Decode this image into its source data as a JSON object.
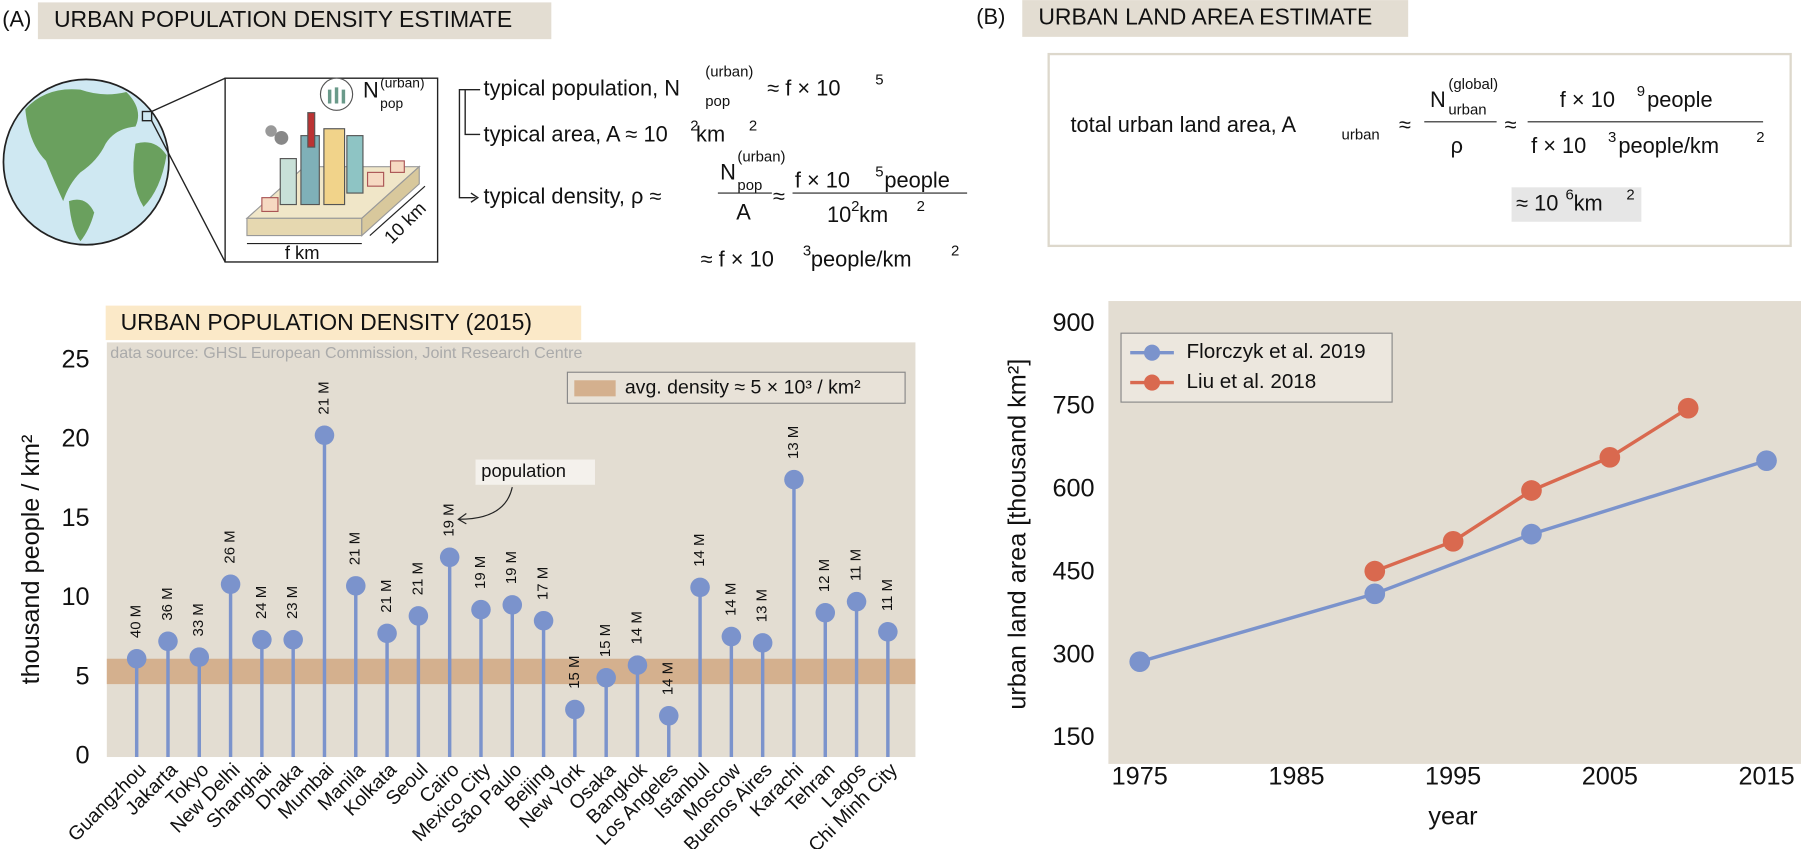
{
  "panel_a": {
    "label": "(A)",
    "title": "URBAN POPULATION DENSITY ESTIMATE",
    "diagram": {
      "n": "N",
      "n_sup": "(urban)",
      "n_sub": "pop",
      "width": "f  km",
      "depth": "10 km"
    },
    "population": [
      "typical population, N",
      "(urban)",
      "pop",
      "≈ f × 10",
      "5"
    ],
    "area": [
      "typical area, A ≈ 10",
      "2",
      " km",
      "2"
    ],
    "density": [
      "typical density, ρ ≈",
      "N",
      "(urban)",
      "pop",
      "A",
      "≈",
      "f × 10",
      "5",
      " people",
      "10",
      "2",
      " km",
      "2"
    ],
    "result": [
      "≈ f × 10",
      "3",
      " people/km",
      "2"
    ]
  },
  "panel_b": {
    "label": "(B)",
    "title": "URBAN LAND AREA ESTIMATE",
    "formula": [
      "total urban land area, A",
      "urban",
      "≈",
      "N",
      "(global)",
      "urban",
      "ρ",
      "≈",
      "f × 10",
      "9",
      " people",
      "f × 10",
      "3",
      " people/km",
      "2"
    ],
    "result": [
      "≈ 10",
      "6",
      " km",
      "2"
    ]
  },
  "chart_data": [
    {
      "type": "lollipop",
      "title": "URBAN POPULATION DENSITY (2015)",
      "subtitle": "data source: GHSL European Commission, Joint Research Centre",
      "ylabel": "thousand people / km²",
      "categories": [
        "Guangzhou",
        "Jakarta",
        "Tokyo",
        "New Delhi",
        "Shanghai",
        "Dhaka",
        "Mumbai",
        "Manila",
        "Kolkata",
        "Seoul",
        "Cairo",
        "Mexico City",
        "São Paulo",
        "Beijing",
        "New York",
        "Osaka",
        "Bangkok",
        "Los Angeles",
        "Istanbul",
        "Moscow",
        "Buenos Aires",
        "Karachi",
        "Tehran",
        "Lagos",
        "Ho Chi Minh City"
      ],
      "values": [
        6.2,
        7.3,
        6.3,
        10.9,
        7.4,
        7.4,
        20.3,
        10.8,
        7.8,
        8.9,
        12.6,
        9.3,
        9.6,
        8.6,
        3.0,
        5.0,
        5.8,
        2.6,
        10.7,
        7.6,
        7.2,
        17.5,
        9.1,
        9.8,
        7.9
      ],
      "color": "#7b93cc",
      "population": {
        "name": "population",
        "values": [
          40,
          36,
          33,
          26,
          24,
          23,
          21,
          21,
          21,
          21,
          19,
          19,
          19,
          17,
          15,
          15,
          14,
          14,
          14,
          14,
          13,
          13,
          12,
          11,
          11
        ],
        "value_labels": [
          "40 M",
          "36 M",
          "33 M",
          "26 M",
          "24 M",
          "23 M",
          "21 M",
          "21 M",
          "21 M",
          "21 M",
          "19 M",
          "19 M",
          "19 M",
          "17 M",
          "15 M",
          "15 M",
          "14 M",
          "14 M",
          "14 M",
          "14 M",
          "13 M",
          "13 M",
          "12 M",
          "11 M",
          "11 M"
        ]
      },
      "band": {
        "name": "avg. density ≈ 5 × 10³ / km²",
        "range": [
          4.6,
          6.2
        ],
        "color": "#d4b08e"
      },
      "ylim": [
        0,
        25
      ],
      "yticks": [
        0,
        5,
        10,
        15,
        20,
        25
      ]
    },
    {
      "type": "line",
      "xlabel": "year",
      "ylabel": "urban land area [thousand km²]",
      "series": [
        {
          "name": "Florczyk et al. 2019",
          "color": "#7b93cc",
          "x": [
            1975,
            1990,
            2000,
            2015
          ],
          "values": [
            289,
            412,
            520,
            653
          ]
        },
        {
          "name": "Liu et al. 2018",
          "color": "#d9694f",
          "x": [
            1990,
            1995,
            2000,
            2005,
            2010
          ],
          "values": [
            453,
            507,
            599,
            659,
            748
          ]
        }
      ],
      "xlim": [
        1973,
        2017.2
      ],
      "ylim": [
        104,
        942
      ],
      "xticks": [
        1975,
        1985,
        1995,
        2005,
        2015
      ],
      "yticks": [
        150,
        300,
        450,
        600,
        750,
        900
      ],
      "legend": "upper left"
    }
  ]
}
